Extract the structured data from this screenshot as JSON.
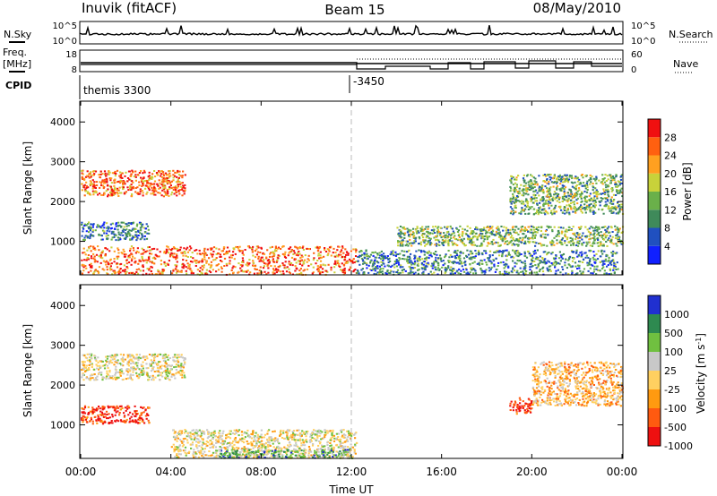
{
  "header": {
    "station": "Inuvik (fitACF)",
    "beam": "Beam 15",
    "date": "08/May/2010"
  },
  "top_strips": {
    "nsky": {
      "label": "N.Sky",
      "tick_top": "10^5",
      "tick_bottom": "10^0"
    },
    "nsearch": {
      "label": "N.Search",
      "tick_top": "10^5",
      "tick_bottom": "10^0"
    },
    "freq": {
      "label_line1": "Freq.",
      "label_line2": "[MHz]",
      "tick_top": "18",
      "tick_bottom": "8"
    },
    "nave": {
      "label": "Nave",
      "tick_top": "60",
      "tick_bottom": "0"
    },
    "cpid": {
      "label": "CPID",
      "program_1": "themis 3300",
      "program_2": "-3450"
    }
  },
  "chart_data": [
    {
      "type": "heatmap",
      "title": "",
      "quantity": "Power",
      "xlabel": "Time UT",
      "ylabel": "Slant Range [km]",
      "xlim": [
        "00:00",
        "24:00"
      ],
      "x_ticks": [
        "00:00",
        "04:00",
        "08:00",
        "12:00",
        "16:00",
        "20:00",
        "00:00"
      ],
      "ylim": [
        180,
        4500
      ],
      "y_ticks": [
        1000,
        2000,
        3000,
        4000
      ],
      "colorbar": {
        "label": "Power [dB]",
        "min": 0,
        "max": 32,
        "ticks": [
          "4",
          "8",
          "12",
          "16",
          "20",
          "24",
          "28"
        ],
        "colors": [
          "#1020ff",
          "#2050c0",
          "#3f8a5a",
          "#6ab04a",
          "#c8d23a",
          "#ffa020",
          "#ff6010",
          "#f01010"
        ]
      },
      "regions": [
        {
          "t_start": 0.0,
          "t_end": 4.6,
          "r_min": 2150,
          "r_max": 2800,
          "level": 24
        },
        {
          "t_start": 0.0,
          "t_end": 3.0,
          "r_min": 1050,
          "r_max": 1500,
          "level": 10
        },
        {
          "t_start": 0.0,
          "t_end": 12.2,
          "r_min": 180,
          "r_max": 900,
          "level": 26
        },
        {
          "t_start": 12.2,
          "t_end": 23.8,
          "r_min": 180,
          "r_max": 800,
          "level": 8
        },
        {
          "t_start": 14.0,
          "t_end": 24.0,
          "r_min": 900,
          "r_max": 1400,
          "level": 12
        },
        {
          "t_start": 19.0,
          "t_end": 24.0,
          "r_min": 1700,
          "r_max": 2700,
          "level": 12
        }
      ]
    },
    {
      "type": "heatmap",
      "title": "",
      "quantity": "Velocity",
      "xlabel": "Time UT",
      "ylabel": "Slant Range [km]",
      "xlim": [
        "00:00",
        "24:00"
      ],
      "x_ticks": [
        "00:00",
        "04:00",
        "08:00",
        "12:00",
        "16:00",
        "20:00",
        "00:00"
      ],
      "ylim": [
        180,
        4500
      ],
      "y_ticks": [
        1000,
        2000,
        3000,
        4000
      ],
      "colorbar": {
        "label": "Velocity [m s^-1]",
        "bins": [
          "-1000",
          "-500",
          "-100",
          "-25",
          "25",
          "100",
          "500",
          "1000"
        ],
        "ticks": [
          "1000",
          "500",
          "100",
          "25",
          "-25",
          "-100",
          "-500",
          "-1000"
        ],
        "colors": [
          "#ee1010",
          "#ff5a10",
          "#ff9a10",
          "#ffd060",
          "#c8c8c8",
          "#70c040",
          "#2e8a50",
          "#2030d0"
        ]
      },
      "regions": [
        {
          "t_start": 0.0,
          "t_end": 4.6,
          "r_min": 2150,
          "r_max": 2800,
          "level": 4
        },
        {
          "t_start": 0.0,
          "t_end": 3.0,
          "r_min": 1050,
          "r_max": 1500,
          "level": 1
        },
        {
          "t_start": 4.0,
          "t_end": 12.2,
          "r_min": 180,
          "r_max": 900,
          "level": 4
        },
        {
          "t_start": 6.0,
          "t_end": 12.0,
          "r_min": 180,
          "r_max": 400,
          "level": 6
        },
        {
          "t_start": 19.0,
          "t_end": 20.0,
          "r_min": 1300,
          "r_max": 1700,
          "level": 1
        },
        {
          "t_start": 20.0,
          "t_end": 24.0,
          "r_min": 1500,
          "r_max": 2600,
          "level": 3
        }
      ]
    }
  ]
}
